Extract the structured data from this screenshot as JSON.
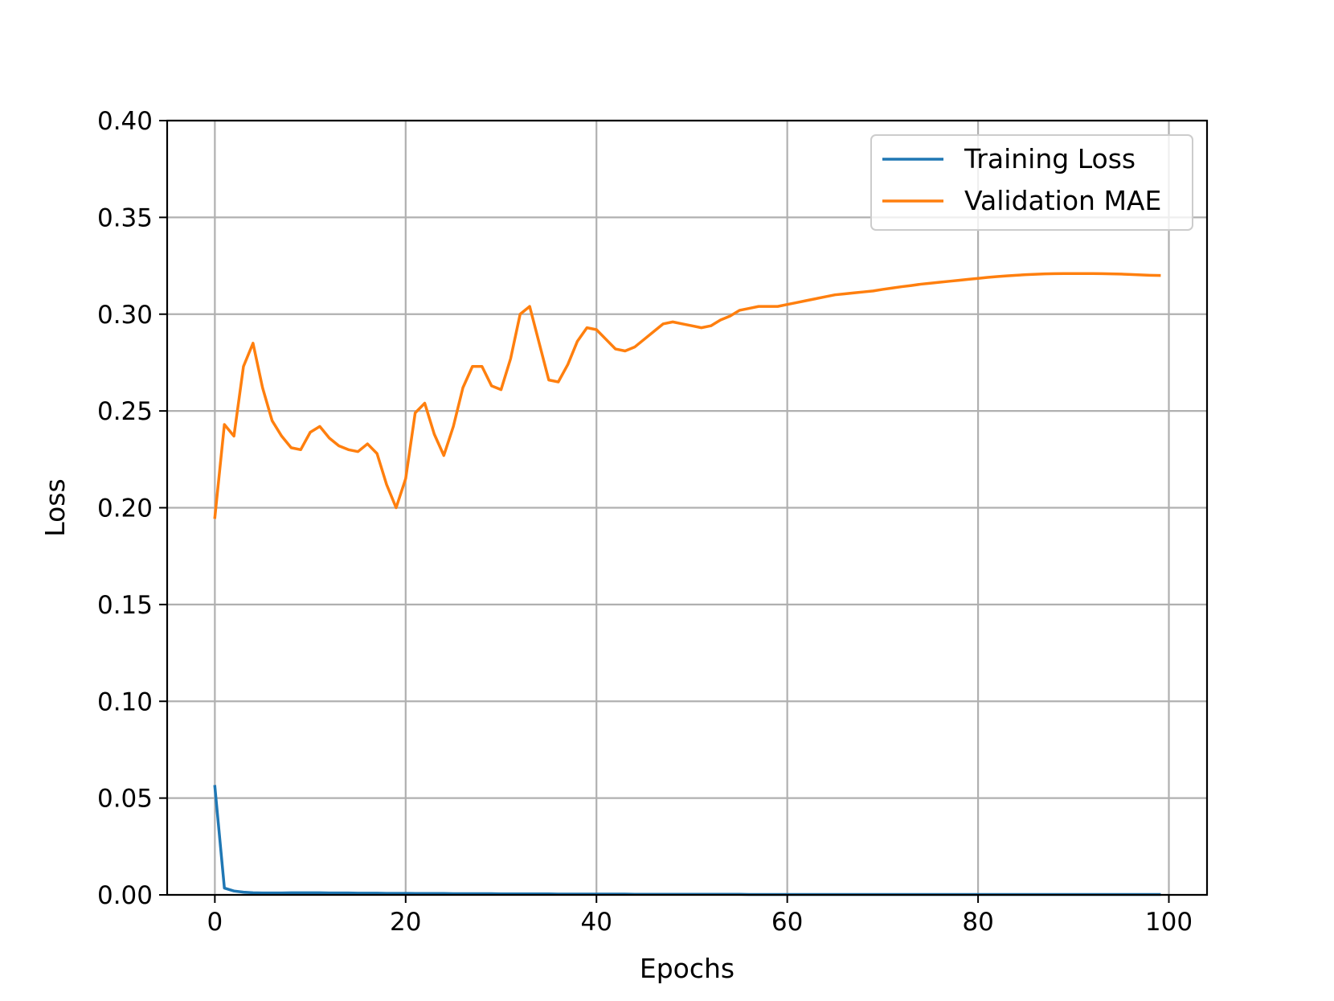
{
  "chart_data": {
    "type": "line",
    "xlabel": "Epochs",
    "ylabel": "Loss",
    "xlim": [
      -5,
      104
    ],
    "ylim": [
      0.0,
      0.4
    ],
    "xticks": [
      0,
      20,
      40,
      60,
      80,
      100
    ],
    "xtick_labels": [
      "0",
      "20",
      "40",
      "60",
      "80",
      "100"
    ],
    "yticks": [
      0.0,
      0.05,
      0.1,
      0.15,
      0.2,
      0.25,
      0.3,
      0.35,
      0.4
    ],
    "ytick_labels": [
      "0.00",
      "0.05",
      "0.10",
      "0.15",
      "0.20",
      "0.25",
      "0.30",
      "0.35",
      "0.40"
    ],
    "grid": true,
    "legend_position": "top-right",
    "series": [
      {
        "name": "Training Loss",
        "color": "#1f77b4",
        "x": [
          0,
          1,
          2,
          3,
          4,
          5,
          6,
          7,
          8,
          9,
          10,
          11,
          12,
          13,
          14,
          15,
          16,
          17,
          18,
          19,
          20,
          21,
          22,
          23,
          24,
          25,
          26,
          27,
          28,
          29,
          30,
          31,
          32,
          33,
          34,
          35,
          36,
          37,
          38,
          39,
          40,
          41,
          42,
          43,
          44,
          45,
          46,
          47,
          48,
          49,
          50,
          51,
          52,
          53,
          54,
          55,
          56,
          57,
          58,
          59,
          60,
          61,
          62,
          63,
          64,
          65,
          66,
          67,
          68,
          69,
          70,
          71,
          72,
          73,
          74,
          75,
          76,
          77,
          78,
          79,
          80,
          81,
          82,
          83,
          84,
          85,
          86,
          87,
          88,
          89,
          90,
          91,
          92,
          93,
          94,
          95,
          96,
          97,
          98,
          99
        ],
        "y": [
          0.056,
          0.0035,
          0.002,
          0.0014,
          0.0011,
          0.001,
          0.001,
          0.001,
          0.0011,
          0.0011,
          0.0011,
          0.0011,
          0.001,
          0.001,
          0.001,
          0.0009,
          0.0009,
          0.0009,
          0.0008,
          0.0008,
          0.0008,
          0.0007,
          0.0007,
          0.0007,
          0.0007,
          0.0006,
          0.0006,
          0.0006,
          0.0006,
          0.0006,
          0.0005,
          0.0005,
          0.0005,
          0.0005,
          0.0005,
          0.0005,
          0.0004,
          0.0004,
          0.0004,
          0.0004,
          0.0004,
          0.0004,
          0.0004,
          0.0004,
          0.0003,
          0.0003,
          0.0003,
          0.0003,
          0.0003,
          0.0003,
          0.0003,
          0.0003,
          0.0003,
          0.0003,
          0.0003,
          0.0003,
          0.0002,
          0.0002,
          0.0002,
          0.0002,
          0.0002,
          0.0002,
          0.0002,
          0.0002,
          0.0002,
          0.0002,
          0.0002,
          0.0002,
          0.0002,
          0.0002,
          0.0002,
          0.0002,
          0.0002,
          0.0002,
          0.0002,
          0.0002,
          0.0002,
          0.0002,
          0.0002,
          0.0002,
          0.0002,
          0.0002,
          0.0002,
          0.0002,
          0.0002,
          0.0002,
          0.0002,
          0.0002,
          0.0002,
          0.0002,
          0.0002,
          0.0002,
          0.0002,
          0.0002,
          0.0002,
          0.0002,
          0.0002,
          0.0002,
          0.0002,
          0.0002
        ]
      },
      {
        "name": "Validation MAE",
        "color": "#ff7f0e",
        "x": [
          0,
          1,
          2,
          3,
          4,
          5,
          6,
          7,
          8,
          9,
          10,
          11,
          12,
          13,
          14,
          15,
          16,
          17,
          18,
          19,
          20,
          21,
          22,
          23,
          24,
          25,
          26,
          27,
          28,
          29,
          30,
          31,
          32,
          33,
          34,
          35,
          36,
          37,
          38,
          39,
          40,
          41,
          42,
          43,
          44,
          45,
          46,
          47,
          48,
          49,
          50,
          51,
          52,
          53,
          54,
          55,
          56,
          57,
          58,
          59,
          60,
          61,
          62,
          63,
          64,
          65,
          66,
          67,
          68,
          69,
          70,
          71,
          72,
          73,
          74,
          75,
          76,
          77,
          78,
          79,
          80,
          81,
          82,
          83,
          84,
          85,
          86,
          87,
          88,
          89,
          90,
          91,
          92,
          93,
          94,
          95,
          96,
          97,
          98,
          99
        ],
        "y": [
          0.195,
          0.243,
          0.237,
          0.273,
          0.285,
          0.262,
          0.245,
          0.237,
          0.231,
          0.23,
          0.239,
          0.242,
          0.236,
          0.232,
          0.23,
          0.229,
          0.233,
          0.228,
          0.212,
          0.2,
          0.215,
          0.249,
          0.254,
          0.238,
          0.227,
          0.242,
          0.262,
          0.273,
          0.273,
          0.263,
          0.261,
          0.277,
          0.3,
          0.304,
          0.285,
          0.266,
          0.265,
          0.274,
          0.286,
          0.293,
          0.292,
          0.287,
          0.282,
          0.281,
          0.283,
          0.287,
          0.291,
          0.295,
          0.296,
          0.295,
          0.294,
          0.293,
          0.294,
          0.297,
          0.299,
          0.302,
          0.303,
          0.304,
          0.304,
          0.304,
          0.305,
          0.306,
          0.307,
          0.308,
          0.309,
          0.31,
          0.3105,
          0.311,
          0.3115,
          0.312,
          0.3128,
          0.3135,
          0.3142,
          0.3148,
          0.3155,
          0.316,
          0.3165,
          0.317,
          0.3175,
          0.318,
          0.3185,
          0.319,
          0.3194,
          0.3198,
          0.3201,
          0.3204,
          0.3206,
          0.3208,
          0.3209,
          0.321,
          0.321,
          0.321,
          0.321,
          0.3209,
          0.3208,
          0.3207,
          0.3205,
          0.3203,
          0.3201,
          0.32
        ]
      }
    ]
  }
}
